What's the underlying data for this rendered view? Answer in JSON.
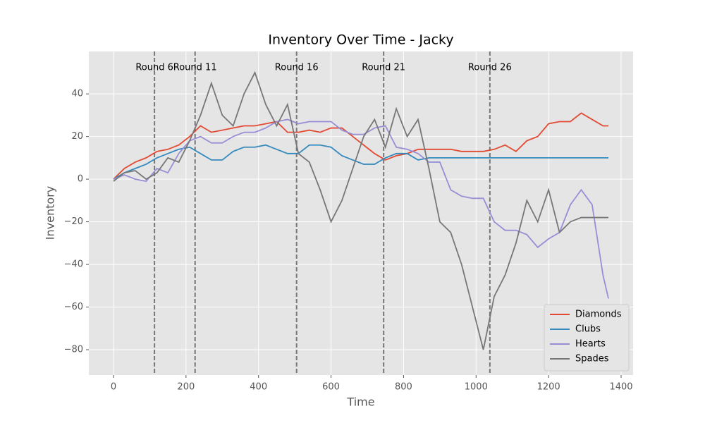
{
  "chart_data": {
    "type": "line",
    "title": "Inventory Over Time - Jacky",
    "x_label": "Time",
    "y_label": "Inventory",
    "x": [
      0,
      30,
      60,
      90,
      120,
      150,
      180,
      210,
      240,
      270,
      300,
      330,
      360,
      390,
      420,
      450,
      480,
      510,
      540,
      570,
      600,
      630,
      660,
      690,
      720,
      750,
      780,
      810,
      840,
      870,
      900,
      930,
      960,
      990,
      1020,
      1050,
      1080,
      1110,
      1140,
      1170,
      1200,
      1230,
      1260,
      1290,
      1320,
      1350,
      1365
    ],
    "series": [
      {
        "name": "Diamonds",
        "color": "#E24A33",
        "values": [
          0,
          5,
          8,
          10,
          13,
          14,
          16,
          20,
          25,
          22,
          23,
          24,
          25,
          25,
          26,
          27,
          22,
          22,
          23,
          22,
          24,
          24,
          20,
          16,
          12,
          9,
          11,
          12,
          14,
          14,
          14,
          14,
          13,
          13,
          13,
          14,
          16,
          13,
          18,
          20,
          26,
          27,
          27,
          31,
          28,
          25,
          25
        ]
      },
      {
        "name": "Clubs",
        "color": "#348ABD",
        "values": [
          0,
          3,
          5,
          7,
          10,
          12,
          14,
          15,
          12,
          9,
          9,
          13,
          15,
          15,
          16,
          14,
          12,
          12,
          16,
          16,
          15,
          11,
          9,
          7,
          7,
          10,
          12,
          12,
          9,
          10,
          10,
          10,
          10,
          10,
          10,
          10,
          10,
          10,
          10,
          10,
          10,
          10,
          10,
          10,
          10,
          10,
          10
        ]
      },
      {
        "name": "Hearts",
        "color": "#988ED5",
        "values": [
          0,
          2,
          0,
          -1,
          5,
          3,
          12,
          18,
          20,
          17,
          17,
          20,
          22,
          22,
          24,
          27,
          28,
          26,
          27,
          27,
          27,
          23,
          21,
          21,
          24,
          25,
          15,
          14,
          12,
          8,
          8,
          -5,
          -8,
          -9,
          -9,
          -20,
          -24,
          -24,
          -26,
          -32,
          -28,
          -25,
          -12,
          -5,
          -12,
          -45,
          -56
        ]
      },
      {
        "name": "Spades",
        "color": "#777777",
        "values": [
          -1,
          3,
          4,
          0,
          3,
          10,
          8,
          18,
          30,
          45,
          30,
          25,
          40,
          50,
          35,
          25,
          35,
          12,
          8,
          -5,
          -20,
          -10,
          5,
          20,
          28,
          15,
          33,
          20,
          28,
          5,
          -20,
          -25,
          -40,
          -60,
          -80,
          -55,
          -45,
          -30,
          -10,
          -20,
          -5,
          -25,
          -20,
          -18,
          -18,
          -18,
          -18
        ]
      }
    ],
    "vlines": [
      {
        "x": 113,
        "label": "Round 6"
      },
      {
        "x": 225,
        "label": "Round 11"
      },
      {
        "x": 505,
        "label": "Round 16"
      },
      {
        "x": 745,
        "label": "Round 21"
      },
      {
        "x": 1038,
        "label": "Round 26"
      }
    ],
    "xlim": [
      -68,
      1433
    ],
    "ylim": [
      -91.9,
      59.9
    ],
    "xticks": [
      0,
      200,
      400,
      600,
      800,
      1000,
      1200,
      1400
    ],
    "yticks": [
      {
        "value": -80,
        "label": "−80"
      },
      {
        "value": -60,
        "label": "−60"
      },
      {
        "value": -40,
        "label": "−40"
      },
      {
        "value": -20,
        "label": "−20"
      },
      0,
      20,
      40
    ],
    "grid": true,
    "legend": "lower right"
  }
}
